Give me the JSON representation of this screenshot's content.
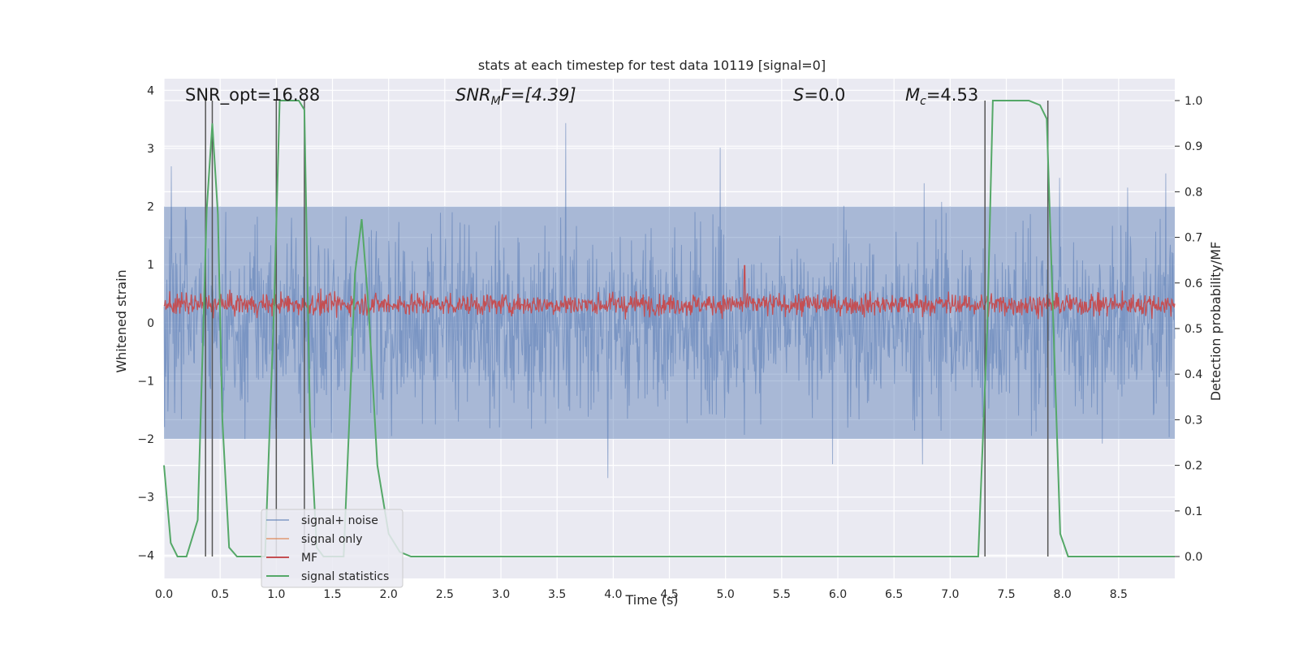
{
  "chart_data": {
    "type": "line",
    "title": "stats at each timestep for test data 10119 [signal=0]",
    "xlabel": "Time (s)",
    "ylabel_left": "Whitened strain",
    "ylabel_right": "Detection probability/MF",
    "xlim": [
      0.0,
      9.0
    ],
    "ylim_left": [
      -4.4,
      4.2
    ],
    "ylim_right": [
      -0.048,
      1.048
    ],
    "x_ticks": [
      "0.0",
      "0.5",
      "1.0",
      "1.5",
      "2.0",
      "2.5",
      "3.0",
      "3.5",
      "4.0",
      "4.5",
      "5.0",
      "5.5",
      "6.0",
      "6.5",
      "7.0",
      "7.5",
      "8.0",
      "8.5"
    ],
    "y_ticks_left": [
      "−4",
      "−3",
      "−2",
      "−1",
      "0",
      "1",
      "2",
      "3",
      "4"
    ],
    "y_ticks_right": [
      "0.0",
      "0.1",
      "0.2",
      "0.3",
      "0.4",
      "0.5",
      "0.6",
      "0.7",
      "0.8",
      "0.9",
      "1.0"
    ],
    "grid": true,
    "background": "#eaeaf2",
    "legend": {
      "placement": "lower-left",
      "entries": [
        {
          "label": "signal+ noise",
          "color": "#4c72b0"
        },
        {
          "label": "signal only",
          "color": "#dd8452"
        },
        {
          "label": "MF",
          "color": "#c44e52"
        },
        {
          "label": "signal statistics",
          "color": "#55a868"
        }
      ]
    },
    "annotations": {
      "snr_opt": "SNR_opt=16.88",
      "snr_mf_main": "SNR",
      "snr_mf_sub": "M",
      "snr_mf_rest": "F=[4.39]",
      "s_var": "S",
      "s_rest": "=0.0",
      "mc_main": "M",
      "mc_sub": "c",
      "mc_rest": "=4.53"
    },
    "series": [
      {
        "name": "signal+ noise",
        "axis": "left",
        "color": "#4c72b0",
        "description_range": [
          -4.0,
          3.8
        ],
        "typical_band": [
          -2.0,
          2.0
        ]
      },
      {
        "name": "MF",
        "axis": "right",
        "color": "#c44e52",
        "typical_band": [
          0.52,
          0.6
        ]
      },
      {
        "name": "signal statistics",
        "axis": "right",
        "color": "#55a868",
        "x": [
          0.0,
          0.06,
          0.12,
          0.2,
          0.3,
          0.38,
          0.43,
          0.48,
          0.52,
          0.58,
          0.65,
          0.72,
          0.8,
          0.9,
          0.98,
          1.03,
          1.08,
          1.2,
          1.25,
          1.3,
          1.36,
          1.42,
          1.5,
          1.6,
          1.65,
          1.7,
          1.76,
          1.82,
          1.9,
          2.0,
          2.1,
          2.2,
          2.4,
          3.0,
          4.0,
          5.0,
          6.0,
          7.0,
          7.25,
          7.33,
          7.38,
          7.5,
          7.7,
          7.8,
          7.86,
          7.92,
          7.98,
          8.05,
          8.2,
          8.5,
          9.0
        ],
        "y": [
          0.2,
          0.03,
          0.0,
          0.0,
          0.08,
          0.76,
          0.95,
          0.75,
          0.3,
          0.02,
          0.0,
          0.0,
          0.0,
          0.0,
          0.55,
          1.0,
          1.0,
          1.0,
          0.98,
          0.3,
          0.02,
          0.0,
          0.0,
          0.0,
          0.3,
          0.62,
          0.74,
          0.55,
          0.2,
          0.05,
          0.01,
          0.0,
          0.0,
          0.0,
          0.0,
          0.0,
          0.0,
          0.0,
          0.0,
          0.5,
          1.0,
          1.0,
          1.0,
          0.99,
          0.96,
          0.5,
          0.05,
          0.0,
          0.0,
          0.0,
          0.0
        ]
      }
    ],
    "vertical_markers": [
      {
        "x": 0.37,
        "y_range_right": [
          0.0,
          1.0
        ]
      },
      {
        "x": 0.43,
        "y_range_right": [
          0.0,
          1.0
        ]
      },
      {
        "x": 1.0,
        "y_range_right": [
          0.0,
          1.0
        ]
      },
      {
        "x": 1.25,
        "y_range_right": [
          0.0,
          1.0
        ]
      },
      {
        "x": 7.31,
        "y_range_right": [
          0.0,
          1.0
        ]
      },
      {
        "x": 7.87,
        "y_range_right": [
          0.0,
          1.0
        ]
      }
    ]
  }
}
